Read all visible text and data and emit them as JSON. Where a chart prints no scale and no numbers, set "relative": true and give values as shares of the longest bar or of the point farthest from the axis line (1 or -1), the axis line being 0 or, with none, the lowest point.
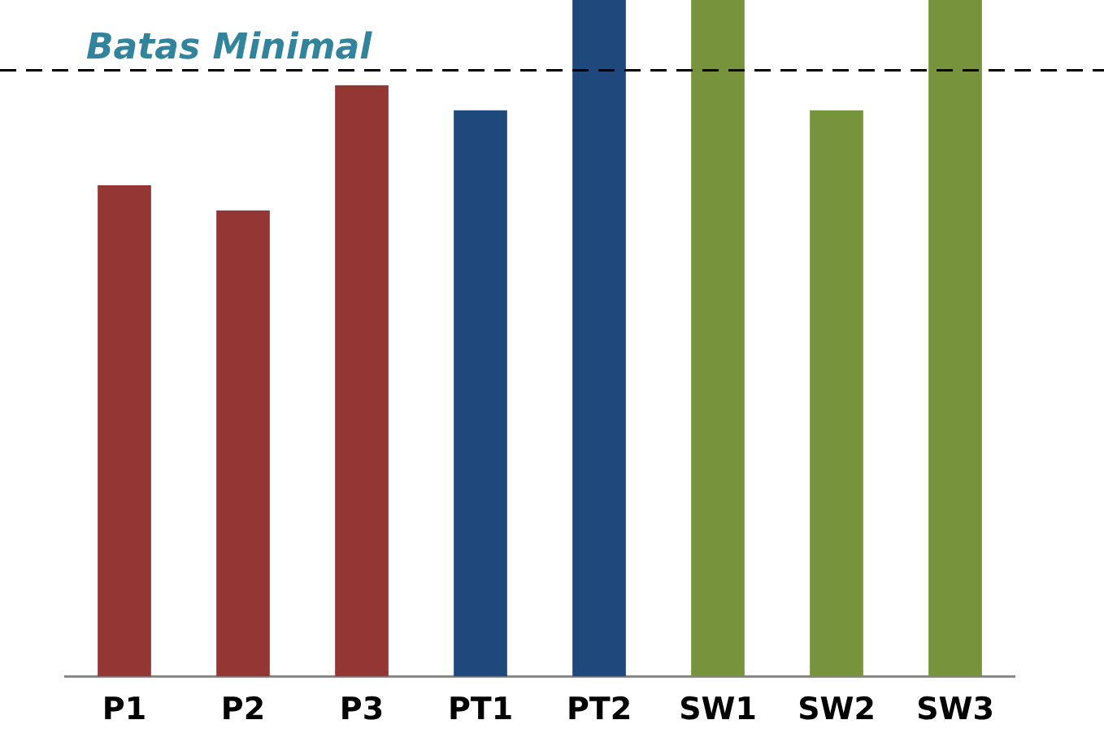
{
  "chart_data": {
    "type": "bar",
    "relative": true,
    "categories": [
      "P1",
      "P2",
      "P3",
      "PT1",
      "PT2",
      "SW1",
      "SW2",
      "SW3"
    ],
    "values": [
      0.726,
      0.689,
      0.874,
      0.837,
      1,
      1,
      0.837,
      1
    ],
    "colors": [
      "#943634",
      "#943634",
      "#943634",
      "#1f497d",
      "#1f497d",
      "#77933c",
      "#77933c",
      "#77933c"
    ],
    "ref_lines": [
      {
        "axis": "y",
        "value": 0.896,
        "label": "Batas Minimal",
        "color": "#000000",
        "line_style": "dashed"
      }
    ],
    "grid": false,
    "legend": false
  }
}
